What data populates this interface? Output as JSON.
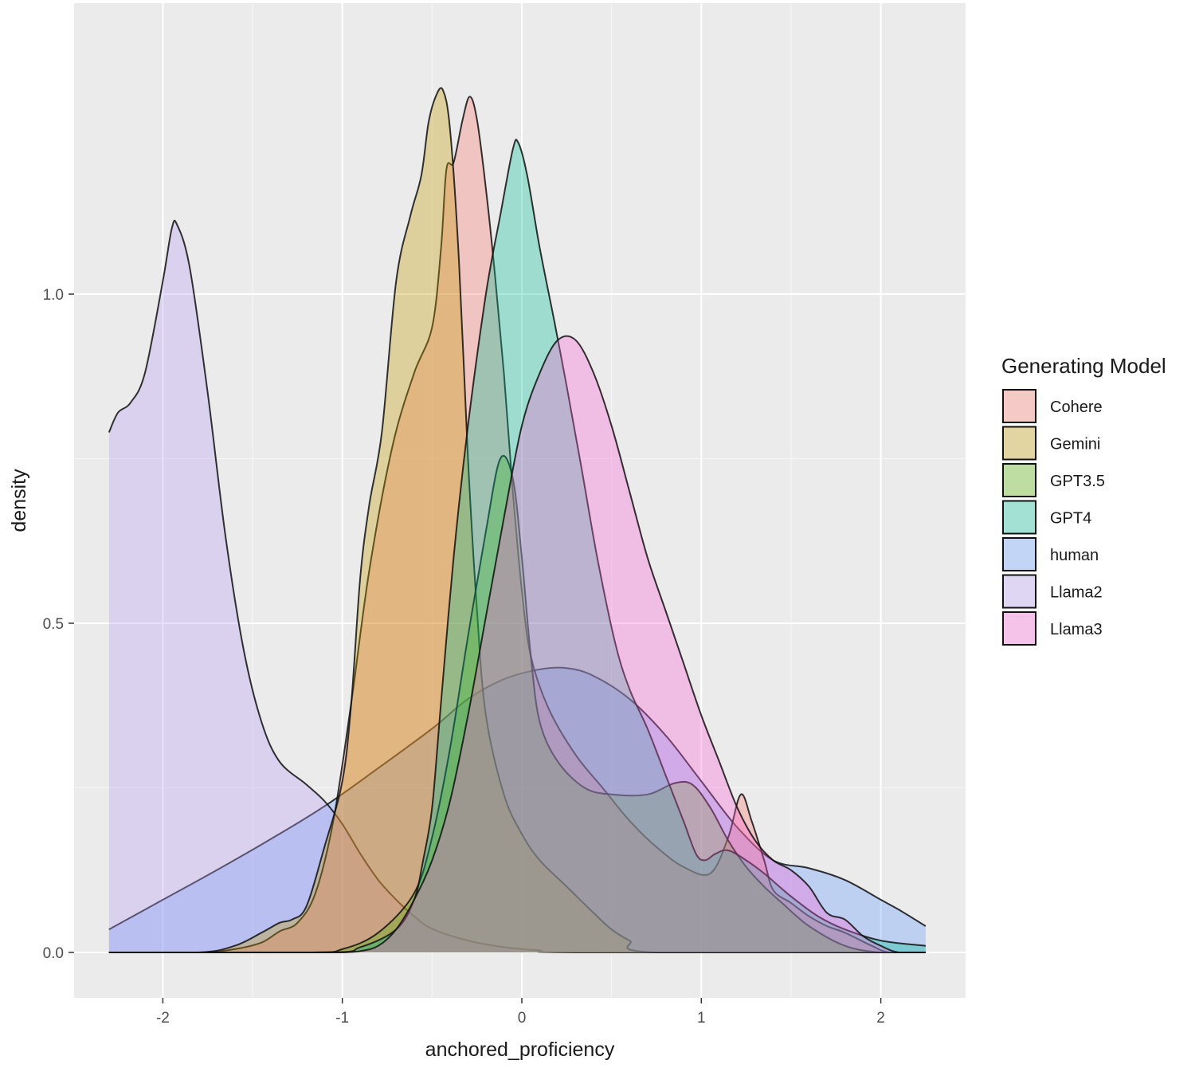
{
  "chart_data": {
    "type": "area",
    "subtype": "density",
    "title": "",
    "xlabel": "anchored_proficiency",
    "ylabel": "density",
    "xlim": [
      -2.5,
      2.5
    ],
    "ylim": [
      -0.05,
      1.43
    ],
    "x_ticks": [
      {
        "value": -2,
        "label": "-2"
      },
      {
        "value": -1,
        "label": "-1"
      },
      {
        "value": 0,
        "label": "0"
      },
      {
        "value": 1,
        "label": "1"
      },
      {
        "value": 2,
        "label": "2"
      }
    ],
    "y_ticks": [
      {
        "value": 0.0,
        "label": "0.0"
      },
      {
        "value": 0.5,
        "label": "0.5"
      },
      {
        "value": 1.0,
        "label": "1.0"
      }
    ],
    "grid": true,
    "legend": {
      "title": "Generating Model",
      "position": "right"
    },
    "series": [
      {
        "name": "human",
        "color": "#619CFF",
        "points": [
          [
            -2.3,
            0.035
          ],
          [
            -2.0,
            0.08
          ],
          [
            -1.7,
            0.125
          ],
          [
            -1.4,
            0.172
          ],
          [
            -1.1,
            0.222
          ],
          [
            -0.8,
            0.28
          ],
          [
            -0.5,
            0.34
          ],
          [
            -0.3,
            0.385
          ],
          [
            -0.1,
            0.415
          ],
          [
            0.1,
            0.43
          ],
          [
            0.25,
            0.432
          ],
          [
            0.4,
            0.42
          ],
          [
            0.6,
            0.385
          ],
          [
            0.8,
            0.33
          ],
          [
            1.0,
            0.26
          ],
          [
            1.2,
            0.19
          ],
          [
            1.4,
            0.14
          ],
          [
            1.6,
            0.128
          ],
          [
            1.8,
            0.11
          ],
          [
            2.0,
            0.08
          ],
          [
            2.1,
            0.065
          ],
          [
            2.25,
            0.04
          ]
        ]
      },
      {
        "name": "Llama2",
        "color": "#B79FF4",
        "points": [
          [
            -2.3,
            0.79
          ],
          [
            -2.25,
            0.82
          ],
          [
            -2.18,
            0.835
          ],
          [
            -2.1,
            0.88
          ],
          [
            -2.0,
            1.02
          ],
          [
            -1.95,
            1.1
          ],
          [
            -1.92,
            1.105
          ],
          [
            -1.85,
            1.04
          ],
          [
            -1.75,
            0.85
          ],
          [
            -1.65,
            0.63
          ],
          [
            -1.55,
            0.46
          ],
          [
            -1.45,
            0.35
          ],
          [
            -1.35,
            0.29
          ],
          [
            -1.2,
            0.255
          ],
          [
            -1.1,
            0.23
          ],
          [
            -1.0,
            0.195
          ],
          [
            -0.9,
            0.15
          ],
          [
            -0.8,
            0.11
          ],
          [
            -0.7,
            0.08
          ],
          [
            -0.6,
            0.055
          ],
          [
            -0.5,
            0.036
          ],
          [
            -0.3,
            0.018
          ],
          [
            -0.1,
            0.008
          ],
          [
            0.1,
            0.003
          ],
          [
            0.3,
            0.0
          ]
        ]
      },
      {
        "name": "Cohere",
        "color": "#F8766D",
        "points": [
          [
            -1.8,
            0.0
          ],
          [
            -1.6,
            0.005
          ],
          [
            -1.45,
            0.015
          ],
          [
            -1.35,
            0.032
          ],
          [
            -1.25,
            0.045
          ],
          [
            -1.15,
            0.09
          ],
          [
            -1.05,
            0.2
          ],
          [
            -0.95,
            0.38
          ],
          [
            -0.85,
            0.58
          ],
          [
            -0.72,
            0.77
          ],
          [
            -0.6,
            0.88
          ],
          [
            -0.5,
            0.95
          ],
          [
            -0.45,
            1.07
          ],
          [
            -0.42,
            1.19
          ],
          [
            -0.38,
            1.2
          ],
          [
            -0.33,
            1.265
          ],
          [
            -0.29,
            1.3
          ],
          [
            -0.25,
            1.265
          ],
          [
            -0.2,
            1.16
          ],
          [
            -0.15,
            1.03
          ],
          [
            -0.1,
            0.88
          ],
          [
            -0.05,
            0.7
          ],
          [
            0.0,
            0.55
          ],
          [
            0.05,
            0.45
          ],
          [
            0.15,
            0.37
          ],
          [
            0.3,
            0.3
          ],
          [
            0.45,
            0.25
          ],
          [
            0.6,
            0.2
          ],
          [
            0.75,
            0.16
          ],
          [
            0.9,
            0.13
          ],
          [
            1.05,
            0.12
          ],
          [
            1.15,
            0.175
          ],
          [
            1.22,
            0.24
          ],
          [
            1.28,
            0.2
          ],
          [
            1.35,
            0.14
          ],
          [
            1.4,
            0.095
          ],
          [
            1.5,
            0.075
          ],
          [
            1.6,
            0.055
          ],
          [
            1.7,
            0.04
          ],
          [
            1.8,
            0.03
          ],
          [
            1.95,
            0.01
          ],
          [
            2.05,
            0.0
          ]
        ]
      },
      {
        "name": "Gemini",
        "color": "#C49A00",
        "points": [
          [
            -1.8,
            0.0
          ],
          [
            -1.6,
            0.01
          ],
          [
            -1.45,
            0.03
          ],
          [
            -1.35,
            0.045
          ],
          [
            -1.28,
            0.05
          ],
          [
            -1.2,
            0.07
          ],
          [
            -1.1,
            0.16
          ],
          [
            -1.0,
            0.26
          ],
          [
            -0.95,
            0.38
          ],
          [
            -0.9,
            0.57
          ],
          [
            -0.85,
            0.68
          ],
          [
            -0.78,
            0.79
          ],
          [
            -0.7,
            1.02
          ],
          [
            -0.62,
            1.12
          ],
          [
            -0.56,
            1.18
          ],
          [
            -0.52,
            1.26
          ],
          [
            -0.48,
            1.3
          ],
          [
            -0.44,
            1.31
          ],
          [
            -0.4,
            1.25
          ],
          [
            -0.35,
            1.05
          ],
          [
            -0.3,
            0.75
          ],
          [
            -0.25,
            0.52
          ],
          [
            -0.2,
            0.36
          ],
          [
            -0.1,
            0.24
          ],
          [
            0.0,
            0.18
          ],
          [
            0.1,
            0.14
          ],
          [
            0.25,
            0.1
          ],
          [
            0.4,
            0.06
          ],
          [
            0.5,
            0.035
          ],
          [
            0.6,
            0.018
          ],
          [
            0.75,
            0.0
          ]
        ]
      },
      {
        "name": "GPT3.5",
        "color": "#53B400",
        "points": [
          [
            -1.2,
            0.0
          ],
          [
            -1.0,
            0.005
          ],
          [
            -0.8,
            0.03
          ],
          [
            -0.6,
            0.09
          ],
          [
            -0.5,
            0.175
          ],
          [
            -0.4,
            0.31
          ],
          [
            -0.3,
            0.48
          ],
          [
            -0.2,
            0.64
          ],
          [
            -0.12,
            0.75
          ],
          [
            -0.05,
            0.72
          ],
          [
            0.0,
            0.6
          ],
          [
            0.05,
            0.45
          ],
          [
            0.1,
            0.35
          ],
          [
            0.2,
            0.29
          ],
          [
            0.35,
            0.25
          ],
          [
            0.5,
            0.24
          ],
          [
            0.7,
            0.24
          ],
          [
            0.85,
            0.257
          ],
          [
            0.95,
            0.255
          ],
          [
            1.05,
            0.22
          ],
          [
            1.15,
            0.17
          ],
          [
            1.25,
            0.13
          ],
          [
            1.35,
            0.1
          ],
          [
            1.45,
            0.075
          ],
          [
            1.6,
            0.04
          ],
          [
            1.8,
            0.01
          ],
          [
            2.0,
            0.0
          ]
        ]
      },
      {
        "name": "GPT4",
        "color": "#00C094",
        "points": [
          [
            -1.1,
            0.0
          ],
          [
            -0.9,
            0.008
          ],
          [
            -0.7,
            0.035
          ],
          [
            -0.6,
            0.08
          ],
          [
            -0.55,
            0.14
          ],
          [
            -0.5,
            0.22
          ],
          [
            -0.45,
            0.38
          ],
          [
            -0.38,
            0.6
          ],
          [
            -0.3,
            0.8
          ],
          [
            -0.2,
            1.0
          ],
          [
            -0.12,
            1.12
          ],
          [
            -0.05,
            1.22
          ],
          [
            -0.02,
            1.23
          ],
          [
            0.03,
            1.18
          ],
          [
            0.1,
            1.07
          ],
          [
            0.18,
            0.96
          ],
          [
            0.25,
            0.86
          ],
          [
            0.33,
            0.74
          ],
          [
            0.42,
            0.6
          ],
          [
            0.52,
            0.47
          ],
          [
            0.6,
            0.4
          ],
          [
            0.7,
            0.34
          ],
          [
            0.8,
            0.27
          ],
          [
            0.9,
            0.2
          ],
          [
            0.97,
            0.15
          ],
          [
            1.02,
            0.14
          ],
          [
            1.08,
            0.15
          ],
          [
            1.15,
            0.155
          ],
          [
            1.25,
            0.14
          ],
          [
            1.35,
            0.12
          ],
          [
            1.5,
            0.085
          ],
          [
            1.65,
            0.055
          ],
          [
            1.8,
            0.035
          ],
          [
            2.0,
            0.018
          ],
          [
            2.25,
            0.01
          ]
        ]
      },
      {
        "name": "Llama3",
        "color": "#FB61D7",
        "points": [
          [
            -1.2,
            0.0
          ],
          [
            -1.0,
            0.0
          ],
          [
            -0.9,
            0.002
          ],
          [
            -0.8,
            0.01
          ],
          [
            -0.7,
            0.035
          ],
          [
            -0.6,
            0.08
          ],
          [
            -0.5,
            0.14
          ],
          [
            -0.4,
            0.23
          ],
          [
            -0.3,
            0.36
          ],
          [
            -0.2,
            0.51
          ],
          [
            -0.1,
            0.66
          ],
          [
            0.0,
            0.8
          ],
          [
            0.1,
            0.88
          ],
          [
            0.2,
            0.93
          ],
          [
            0.3,
            0.93
          ],
          [
            0.4,
            0.88
          ],
          [
            0.5,
            0.8
          ],
          [
            0.6,
            0.7
          ],
          [
            0.7,
            0.6
          ],
          [
            0.8,
            0.52
          ],
          [
            0.9,
            0.44
          ],
          [
            1.0,
            0.36
          ],
          [
            1.1,
            0.29
          ],
          [
            1.2,
            0.22
          ],
          [
            1.3,
            0.17
          ],
          [
            1.4,
            0.14
          ],
          [
            1.5,
            0.125
          ],
          [
            1.6,
            0.1
          ],
          [
            1.7,
            0.06
          ],
          [
            1.8,
            0.05
          ],
          [
            1.9,
            0.025
          ],
          [
            2.0,
            0.01
          ],
          [
            2.1,
            0.0
          ]
        ]
      }
    ]
  }
}
